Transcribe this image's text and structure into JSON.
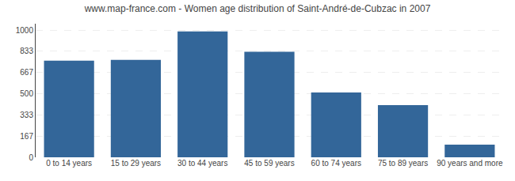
{
  "chart_data": {
    "type": "bar",
    "title": "www.map-france.com - Women age distribution of Saint-André-de-Cubzac in 2007",
    "categories": [
      "0 to 14 years",
      "15 to 29 years",
      "30 to 44 years",
      "45 to 59 years",
      "60 to 74 years",
      "75 to 89 years",
      "90 years and more"
    ],
    "values": [
      760,
      765,
      990,
      830,
      510,
      410,
      100
    ],
    "color": "#336699",
    "ylim": [
      0,
      1050
    ],
    "yticks": [
      0,
      167,
      333,
      500,
      667,
      833,
      1000
    ],
    "grid": true
  }
}
